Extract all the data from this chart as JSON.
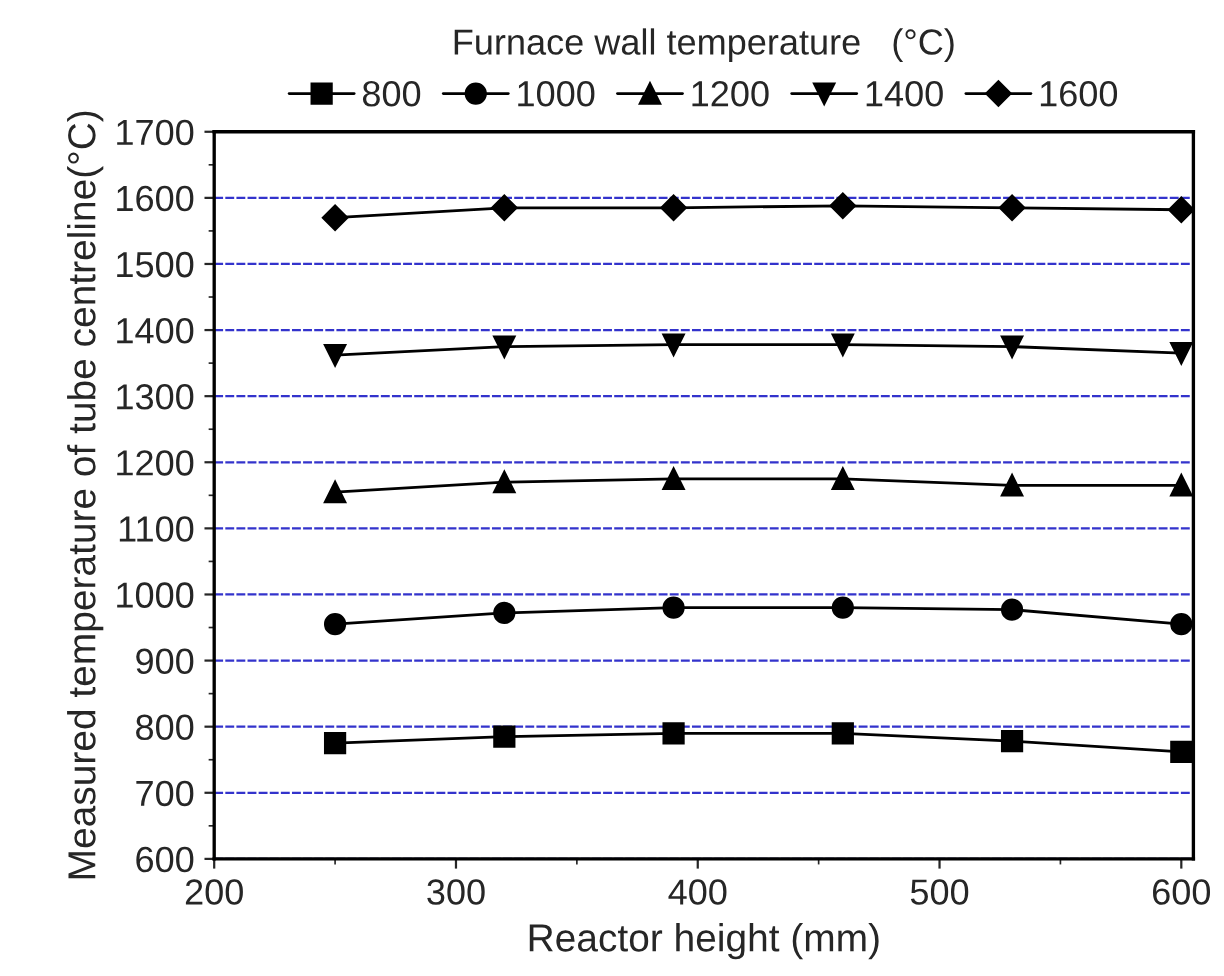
{
  "chart_data": {
    "type": "line",
    "xlabel": "Reactor height (mm)",
    "ylabel": "Measured temperature of tube centreline(°C)",
    "legend_title": "Furnace wall temperature   (°C)",
    "legend": "top",
    "grid": "y",
    "line_style": "solid",
    "x": [
      250,
      320,
      390,
      460,
      530,
      600
    ],
    "xlim": [
      200,
      605
    ],
    "xticks": [
      200,
      300,
      400,
      500,
      600
    ],
    "ylim": [
      600,
      1700
    ],
    "yticks": [
      600,
      700,
      800,
      900,
      1000,
      1100,
      1200,
      1300,
      1400,
      1500,
      1600,
      1700
    ],
    "series": [
      {
        "name": "800",
        "color": "#000000",
        "marker": "square",
        "values": [
          775,
          785,
          790,
          790,
          778,
          762
        ]
      },
      {
        "name": "1000",
        "color": "#000000",
        "marker": "circle",
        "values": [
          955,
          972,
          980,
          980,
          977,
          955
        ]
      },
      {
        "name": "1200",
        "color": "#000000",
        "marker": "triangle",
        "values": [
          1155,
          1170,
          1175,
          1175,
          1165,
          1165
        ]
      },
      {
        "name": "1400",
        "color": "#000000",
        "marker": "triangle_down",
        "values": [
          1362,
          1375,
          1378,
          1378,
          1375,
          1365
        ]
      },
      {
        "name": "1600",
        "color": "#000000",
        "marker": "diamond",
        "values": [
          1570,
          1585,
          1585,
          1588,
          1585,
          1582
        ]
      }
    ]
  }
}
